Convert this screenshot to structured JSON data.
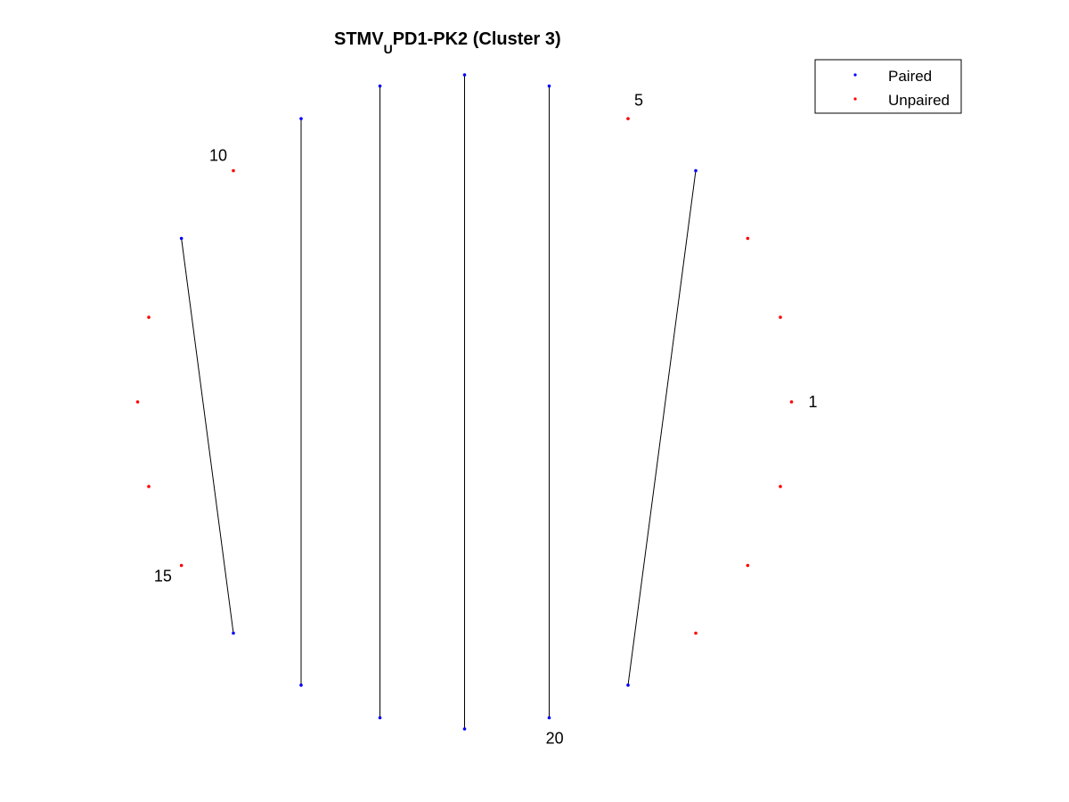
{
  "title": {
    "main": "STMV",
    "subscript": "U",
    "rest": "PD1-PK2 (Cluster 3)"
  },
  "legend": {
    "paired_label": "Paired",
    "unpaired_label": "Unpaired"
  },
  "colors": {
    "paired": "#0000ff",
    "unpaired": "#ff0000",
    "pair_line": "#000000"
  },
  "chart_data": {
    "type": "scatter",
    "num_positions": 24,
    "labeled_positions": [
      "1",
      "5",
      "10",
      "15",
      "20"
    ],
    "pairs": [
      [
        4,
        21
      ],
      [
        6,
        20
      ],
      [
        7,
        19
      ],
      [
        8,
        18
      ],
      [
        9,
        17
      ],
      [
        11,
        16
      ]
    ],
    "grid": false,
    "legend_placement": "top-right"
  }
}
